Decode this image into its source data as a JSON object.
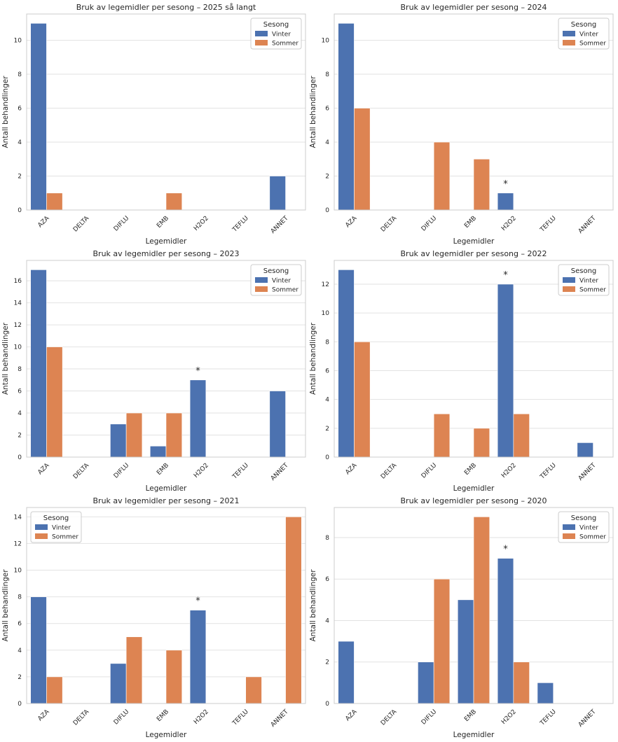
{
  "figure": {
    "colors": {
      "vinter": "#4c72b0",
      "sommer": "#dd8452",
      "grid": "#e2e2e2",
      "frame": "#cccccc"
    }
  },
  "chart_data": [
    {
      "type": "bar",
      "title": "Bruk av legemidler per sesong – 2025 så langt",
      "xlabel": "Legemidler",
      "ylabel": "Antall behandlinger",
      "categories": [
        "AZA",
        "DELTA",
        "DIFLU",
        "EMB",
        "H2O2",
        "TEFLU",
        "ANNET"
      ],
      "series": [
        {
          "name": "Vinter",
          "values": [
            11,
            0,
            0,
            0,
            0,
            0,
            2
          ]
        },
        {
          "name": "Sommer",
          "values": [
            1,
            0,
            0,
            1,
            0,
            0,
            0
          ]
        }
      ],
      "ylim": [
        0,
        11.55
      ],
      "yticks": [
        0,
        2,
        4,
        6,
        8,
        10
      ],
      "legend": {
        "title": "Sesong",
        "position": "top-right"
      },
      "annotations": []
    },
    {
      "type": "bar",
      "title": "Bruk av legemidler per sesong – 2024",
      "xlabel": "Legemidler",
      "ylabel": "Antall behandlinger",
      "categories": [
        "AZA",
        "DELTA",
        "DIFLU",
        "EMB",
        "H2O2",
        "TEFLU",
        "ANNET"
      ],
      "series": [
        {
          "name": "Vinter",
          "values": [
            11,
            0,
            0,
            0,
            1,
            0,
            0
          ]
        },
        {
          "name": "Sommer",
          "values": [
            6,
            0,
            4,
            3,
            0,
            0,
            0
          ]
        }
      ],
      "ylim": [
        0,
        11.55
      ],
      "yticks": [
        0,
        2,
        4,
        6,
        8,
        10
      ],
      "legend": {
        "title": "Sesong",
        "position": "top-right"
      },
      "annotations": [
        {
          "category": "H2O2",
          "text": "*"
        }
      ]
    },
    {
      "type": "bar",
      "title": "Bruk av legemidler per sesong – 2023",
      "xlabel": "Legemidler",
      "ylabel": "Antall behandlinger",
      "categories": [
        "AZA",
        "DELTA",
        "DIFLU",
        "EMB",
        "H2O2",
        "TEFLU",
        "ANNET"
      ],
      "series": [
        {
          "name": "Vinter",
          "values": [
            17,
            0,
            3,
            1,
            7,
            0,
            6
          ]
        },
        {
          "name": "Sommer",
          "values": [
            10,
            0,
            4,
            4,
            0,
            0,
            0
          ]
        }
      ],
      "ylim": [
        0,
        17.85
      ],
      "yticks": [
        0,
        2,
        4,
        6,
        8,
        10,
        12,
        14,
        16
      ],
      "legend": {
        "title": "Sesong",
        "position": "top-right"
      },
      "annotations": [
        {
          "category": "H2O2",
          "text": "*"
        }
      ]
    },
    {
      "type": "bar",
      "title": "Bruk av legemidler per sesong – 2022",
      "xlabel": "Legemidler",
      "ylabel": "Antall behandlinger",
      "categories": [
        "AZA",
        "DELTA",
        "DIFLU",
        "EMB",
        "H2O2",
        "TEFLU",
        "ANNET"
      ],
      "series": [
        {
          "name": "Vinter",
          "values": [
            13,
            0,
            0,
            0,
            12,
            0,
            1
          ]
        },
        {
          "name": "Sommer",
          "values": [
            8,
            0,
            3,
            2,
            3,
            0,
            0
          ]
        }
      ],
      "ylim": [
        0,
        13.65
      ],
      "yticks": [
        0,
        2,
        4,
        6,
        8,
        10,
        12
      ],
      "legend": {
        "title": "Sesong",
        "position": "top-right"
      },
      "annotations": [
        {
          "category": "H2O2",
          "text": "*"
        }
      ]
    },
    {
      "type": "bar",
      "title": "Bruk av legemidler per sesong – 2021",
      "xlabel": "Legemidler",
      "ylabel": "Antall behandlinger",
      "categories": [
        "AZA",
        "DELTA",
        "DIFLU",
        "EMB",
        "H2O2",
        "TEFLU",
        "ANNET"
      ],
      "series": [
        {
          "name": "Vinter",
          "values": [
            8,
            0,
            3,
            0,
            7,
            0,
            0
          ]
        },
        {
          "name": "Sommer",
          "values": [
            2,
            0,
            5,
            4,
            0,
            2,
            14
          ]
        }
      ],
      "ylim": [
        0,
        14.7
      ],
      "yticks": [
        0,
        2,
        4,
        6,
        8,
        10,
        12,
        14
      ],
      "legend": {
        "title": "Sesong",
        "position": "top-left"
      },
      "annotations": [
        {
          "category": "H2O2",
          "text": "*"
        }
      ]
    },
    {
      "type": "bar",
      "title": "Bruk av legemidler per sesong – 2020",
      "xlabel": "Legemidler",
      "ylabel": "Antall behandlinger",
      "categories": [
        "AZA",
        "DELTA",
        "DIFLU",
        "EMB",
        "H2O2",
        "TEFLU",
        "ANNET"
      ],
      "series": [
        {
          "name": "Vinter",
          "values": [
            3,
            0,
            2,
            5,
            7,
            1,
            0
          ]
        },
        {
          "name": "Sommer",
          "values": [
            0,
            0,
            6,
            9,
            2,
            0,
            0
          ]
        }
      ],
      "ylim": [
        0,
        9.45
      ],
      "yticks": [
        0,
        2,
        4,
        6,
        8
      ],
      "legend": {
        "title": "Sesong",
        "position": "top-right"
      },
      "annotations": [
        {
          "category": "H2O2",
          "text": "*"
        }
      ]
    }
  ]
}
